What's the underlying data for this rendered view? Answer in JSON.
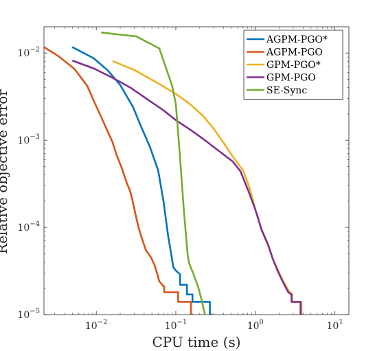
{
  "chart_data": {
    "type": "line",
    "title": "",
    "xlabel": "CPU time (s)",
    "ylabel": "Relative objective error",
    "xscale": "log",
    "yscale": "log",
    "xlim": [
      0.0022,
      15
    ],
    "ylim": [
      1e-05,
      0.02
    ],
    "x_ticks": [
      {
        "value": 0.01,
        "base": "10",
        "exp": "−2"
      },
      {
        "value": 0.1,
        "base": "10",
        "exp": "−1"
      },
      {
        "value": 1,
        "base": "10",
        "exp": "0"
      },
      {
        "value": 10,
        "base": "10",
        "exp": "1"
      }
    ],
    "y_ticks": [
      {
        "value": 1e-05,
        "base": "10",
        "exp": "−5"
      },
      {
        "value": 0.0001,
        "base": "10",
        "exp": "−4"
      },
      {
        "value": 0.001,
        "base": "10",
        "exp": "−3"
      },
      {
        "value": 0.01,
        "base": "10",
        "exp": "−2"
      }
    ],
    "grid": false,
    "legend_position": "top-right",
    "series": [
      {
        "name": "AGPM-PGO*",
        "color": "#0072BD",
        "x": [
          0.005,
          0.0093,
          0.014,
          0.02,
          0.029,
          0.037,
          0.047,
          0.06,
          0.07,
          0.08,
          0.088,
          0.093,
          0.1,
          0.113,
          0.113,
          0.138,
          0.138,
          0.162,
          0.162,
          0.268,
          0.268,
          0.287
        ],
        "y": [
          0.0117,
          0.0087,
          0.0063,
          0.0043,
          0.0024,
          0.0014,
          0.00085,
          0.00045,
          0.0002,
          8e-05,
          4.8e-05,
          3.5e-05,
          3.2e-05,
          2.9e-05,
          2.2e-05,
          2.2e-05,
          1.7e-05,
          1.7e-05,
          1.4e-05,
          1.4e-05,
          1e-05,
          1e-05
        ]
      },
      {
        "name": "AGPM-PGO",
        "color": "#D95319",
        "x": [
          0.0022,
          0.0033,
          0.0053,
          0.0077,
          0.0097,
          0.0117,
          0.0137,
          0.016,
          0.018,
          0.0209,
          0.0243,
          0.0263,
          0.028,
          0.0307,
          0.034,
          0.038,
          0.042,
          0.049,
          0.054,
          0.058,
          0.062,
          0.065,
          0.07,
          0.0715,
          0.0715,
          0.107,
          0.107,
          0.155,
          0.155,
          0.165
        ],
        "y": [
          0.0117,
          0.0093,
          0.0066,
          0.0042,
          0.0026,
          0.0018,
          0.0013,
          0.00095,
          0.00068,
          0.00048,
          0.00032,
          0.00027,
          0.00022,
          0.00015,
          0.0001,
          7.2e-05,
          5.5e-05,
          4.5e-05,
          3.7e-05,
          3e-05,
          2.4e-05,
          2.3e-05,
          2.1e-05,
          2.1e-05,
          1.8e-05,
          1.8e-05,
          1.4e-05,
          1.4e-05,
          1e-05,
          1e-05
        ]
      },
      {
        "name": "GPM-PGO*",
        "color": "#EDB120",
        "x": [
          0.016,
          0.03,
          0.06,
          0.1,
          0.15,
          0.22,
          0.3,
          0.4,
          0.52,
          0.7,
          0.85,
          1.0,
          1.2,
          1.45,
          1.65,
          1.9,
          2.2,
          2.6,
          2.9,
          2.9,
          3.8,
          3.8,
          3.95
        ],
        "y": [
          0.0081,
          0.0064,
          0.0045,
          0.0034,
          0.0026,
          0.0019,
          0.00135,
          0.00093,
          0.00065,
          0.00045,
          0.00028,
          0.00016,
          9.2e-05,
          6.2e-05,
          4.4e-05,
          3.3e-05,
          2.5e-05,
          1.9e-05,
          1.7e-05,
          1.4e-05,
          1.4e-05,
          1e-05,
          1e-05
        ]
      },
      {
        "name": "GPM-PGO",
        "color": "#7E2F8E",
        "x": [
          0.005,
          0.0095,
          0.016,
          0.027,
          0.045,
          0.07,
          0.1,
          0.16,
          0.25,
          0.35,
          0.45,
          0.52,
          0.65,
          0.82,
          1.0,
          1.2,
          1.45,
          1.65,
          1.9,
          2.2,
          2.6,
          2.85,
          2.85,
          3.7,
          3.7,
          3.85
        ],
        "y": [
          0.0082,
          0.0066,
          0.0052,
          0.004,
          0.0029,
          0.0022,
          0.0017,
          0.00128,
          0.00095,
          0.00075,
          0.00063,
          0.00057,
          0.00044,
          0.00026,
          0.00016,
          9.4e-05,
          6.3e-05,
          4.4e-05,
          3.2e-05,
          2.4e-05,
          1.8e-05,
          1.7e-05,
          1.4e-05,
          1.4e-05,
          1e-05,
          1e-05
        ]
      },
      {
        "name": "SE-Sync",
        "color": "#77AC30",
        "x": [
          0.0115,
          0.032,
          0.062,
          0.09,
          0.1,
          0.11,
          0.126,
          0.141,
          0.148,
          0.165,
          0.19,
          0.21,
          0.232
        ],
        "y": [
          0.0172,
          0.0155,
          0.0113,
          0.0042,
          0.0026,
          0.00088,
          0.00016,
          4.8e-05,
          3.8e-05,
          3e-05,
          2.1e-05,
          1.5e-05,
          1e-05
        ]
      }
    ]
  }
}
